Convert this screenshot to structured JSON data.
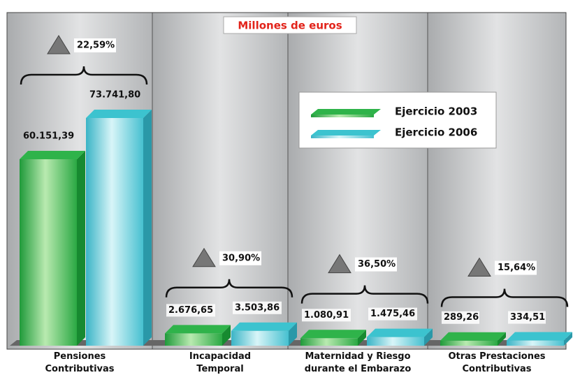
{
  "chart_data": {
    "type": "bar3d",
    "title": "Millones de euros",
    "categories": [
      "Pensiones\nContributivas",
      "Incapacidad\nTemporal",
      "Maternidad y Riesgo\ndurante el Embarazo",
      "Otras Prestaciones\nContributivas"
    ],
    "series": [
      {
        "name": "Ejercicio 2003",
        "color": "#2fb34a",
        "values": [
          60151.39,
          2676.65,
          1080.91,
          289.26
        ],
        "value_labels": [
          "60.151,39",
          "2.676,65",
          "1.080,91",
          "289,26"
        ]
      },
      {
        "name": "Ejercicio 2006",
        "color": "#3cc3cf",
        "values": [
          73741.8,
          3503.86,
          1475.46,
          334.51
        ],
        "value_labels": [
          "73.741,80",
          "3.503,86",
          "1.475,46",
          "334,51"
        ]
      }
    ],
    "annotations": [
      "22,59%",
      "30,90%",
      "36,50%",
      "15,64%"
    ]
  }
}
